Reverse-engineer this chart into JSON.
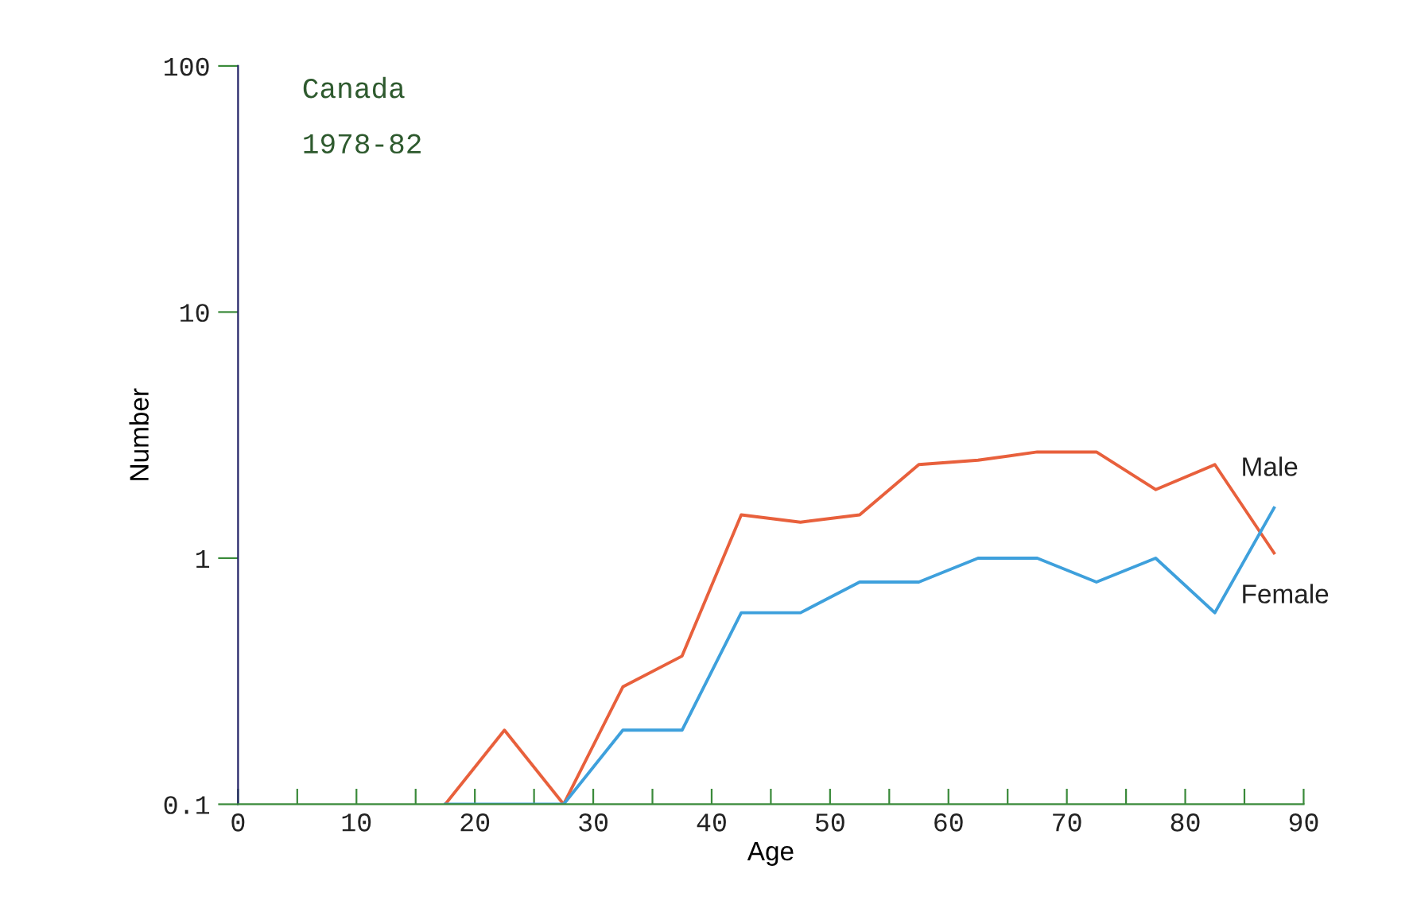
{
  "chart_data": {
    "type": "line",
    "title": "Canada",
    "subtitle": "1978-82",
    "xlabel": "Age",
    "ylabel": "Number",
    "log": "y",
    "xlim": [
      0,
      90
    ],
    "ylim": [
      0.1,
      100
    ],
    "xticks": [
      0,
      {
        "value": 5,
        "label": null
      },
      10,
      {
        "value": 15,
        "label": null
      },
      20,
      {
        "value": 25,
        "label": null
      },
      30,
      {
        "value": 35,
        "label": null
      },
      40,
      {
        "value": 45,
        "label": null
      },
      50,
      {
        "value": 55,
        "label": null
      },
      60,
      {
        "value": 65,
        "label": null
      },
      70,
      {
        "value": 75,
        "label": null
      },
      80,
      {
        "value": 85,
        "label": null
      },
      90
    ],
    "yticks": [
      0.1,
      1,
      10,
      100
    ],
    "grid": false,
    "legend": false,
    "marker": "none",
    "line_style": "solid",
    "x": [
      17.5,
      22.5,
      27.5,
      32.5,
      37.5,
      42.5,
      47.5,
      52.5,
      57.5,
      62.5,
      67.5,
      72.5,
      77.5,
      82.5,
      87.5
    ],
    "series": [
      {
        "name": "Male",
        "color": "#e8603c",
        "values": [
          0.1,
          0.2,
          0.1,
          0.3,
          0.4,
          1.5,
          1.4,
          1.5,
          2.4,
          2.5,
          2.7,
          2.7,
          1.9,
          2.4,
          1.05
        ]
      },
      {
        "name": "Female",
        "color": "#3ea0dc",
        "values": [
          0.1,
          0.1,
          0.1,
          0.2,
          0.2,
          0.6,
          0.6,
          0.8,
          0.8,
          1.0,
          1.0,
          0.8,
          1.0,
          0.6,
          1.6
        ]
      }
    ]
  }
}
